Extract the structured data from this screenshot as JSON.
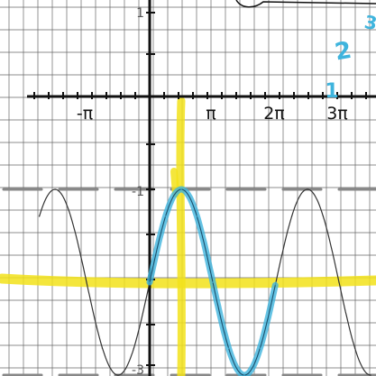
{
  "chart_data": {
    "type": "line",
    "title": "",
    "xlabel": "",
    "ylabel": "",
    "x_tick_labels": [
      "-π",
      "π",
      "2π",
      "3π"
    ],
    "x_tick_values": [
      -3.14159,
      3.14159,
      6.28318,
      9.42477
    ],
    "y_tick_labels": [
      "1",
      "-1",
      "-3"
    ],
    "y_tick_values": [
      1,
      -1,
      -3
    ],
    "xlim": [
      -6.0,
      11.0
    ],
    "ylim": [
      -3.0,
      1.0
    ],
    "grid": true,
    "series": [
      {
        "name": "",
        "kind": "printed sine curve",
        "color": "#333333",
        "function": "y = -2 + sin(x)",
        "x": [
          -5.5,
          -4.71,
          -3.93,
          -3.14,
          -2.36,
          -1.57,
          -0.79,
          0.0,
          0.79,
          1.57,
          2.36,
          3.14,
          3.93,
          4.71,
          5.5,
          6.28,
          7.07,
          7.85,
          8.64,
          9.42,
          10.21,
          11.0
        ],
        "y": [
          -1.29,
          -1.0,
          -1.29,
          -2.0,
          -2.71,
          -3.0,
          -2.71,
          -2.0,
          -1.29,
          -1.0,
          -1.29,
          -2.0,
          -2.71,
          -3.0,
          -2.71,
          -2.0,
          -1.29,
          -1.0,
          -1.29,
          -2.0,
          -2.71,
          -3.0
        ]
      },
      {
        "name": "",
        "kind": "blue highlighter trace over one period",
        "color": "#3fb4dd",
        "x": [
          0.0,
          0.79,
          1.57,
          2.36,
          3.14,
          3.93,
          4.71,
          5.5,
          6.28
        ],
        "y": [
          -2.0,
          -1.29,
          -1.0,
          -1.29,
          -2.0,
          -2.71,
          -3.0,
          -2.71,
          -2.0
        ]
      }
    ],
    "annotations": {
      "handwritten_blue_marks": [
        "2",
        "1",
        "3"
      ],
      "yellow_horizontal_line_y": -2.0,
      "yellow_vertical_line_x": 1.57,
      "gray_dashes_y": [
        -1.0,
        -3.0
      ],
      "colors": {
        "highlighter_yellow": "#f2e21a",
        "highlighter_blue": "#3fb4dd",
        "grid": "#666666",
        "axis": "#111111",
        "dash_gray": "#888888"
      }
    }
  }
}
